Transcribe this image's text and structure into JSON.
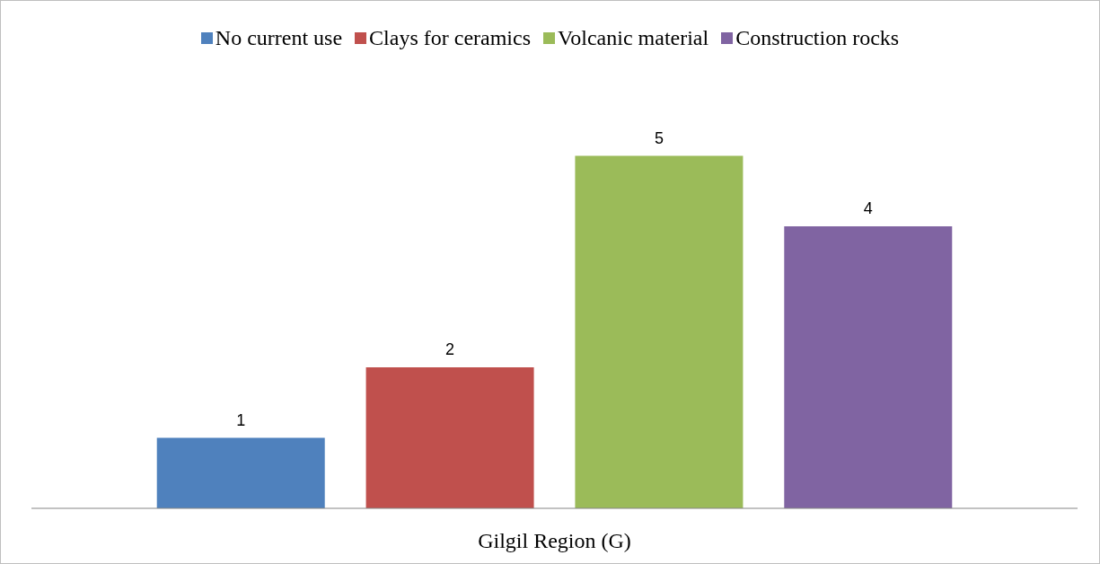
{
  "chart_data": {
    "type": "bar",
    "xlabel": "Gilgil Region (G)",
    "categories": [
      null,
      null,
      null,
      null
    ],
    "stacked": true,
    "series": [
      {
        "name": "No current use",
        "color": "#4f81bd",
        "values": [
          1,
          null,
          null,
          null
        ]
      },
      {
        "name": "Clays for ceramics",
        "color": "#c0504d",
        "values": [
          null,
          2,
          null,
          null
        ]
      },
      {
        "name": "Volcanic material",
        "color": "#9bbb59",
        "values": [
          null,
          null,
          5,
          null
        ]
      },
      {
        "name": "Construction rocks",
        "color": "#8064a2",
        "values": [
          null,
          null,
          null,
          4
        ]
      }
    ],
    "data_labels": true,
    "legend": "top"
  }
}
